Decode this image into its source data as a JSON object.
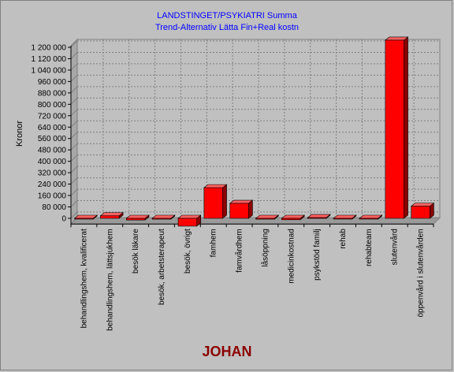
{
  "chart_data": {
    "type": "bar",
    "title": "LANDSTINGET/PSYKIATRI  Summa",
    "subtitle": "Trend-Alternativ Lätta Fin+Real kostn",
    "ylabel": "Kronor",
    "footer": "JOHAN",
    "ylim": [
      -40000,
      1200000
    ],
    "yticks": [
      0,
      80000,
      160000,
      240000,
      320000,
      400000,
      480000,
      560000,
      640000,
      720000,
      800000,
      880000,
      960000,
      1040000,
      1120000,
      1200000
    ],
    "ytick_labels": [
      "0",
      "80 000",
      "160 000",
      "240 000",
      "320 000",
      "400 000",
      "480 000",
      "560 000",
      "640 000",
      "720 000",
      "800 000",
      "880 000",
      "960 000",
      "1 040 000",
      "1 120 000",
      "1 200 000"
    ],
    "categories": [
      "behandlingshem, kvalificerat",
      "behandlingshem, lättsjukhem",
      "besök läkare",
      "besök, arbetsterapeut",
      "besök, övrigt",
      "famhem",
      "famvårdhem",
      "låsöppning",
      "medicinkostnad",
      "psykstöd familj",
      "rehab",
      "rehabteam",
      "slutenvård",
      "öppenvård i slutenvården"
    ],
    "values": [
      -2000,
      18000,
      -12000,
      -6000,
      -55000,
      215000,
      105000,
      -6000,
      -10000,
      5000,
      -5000,
      -5000,
      1250000,
      85000
    ],
    "grid": true,
    "bar_color": "#ff0000"
  }
}
